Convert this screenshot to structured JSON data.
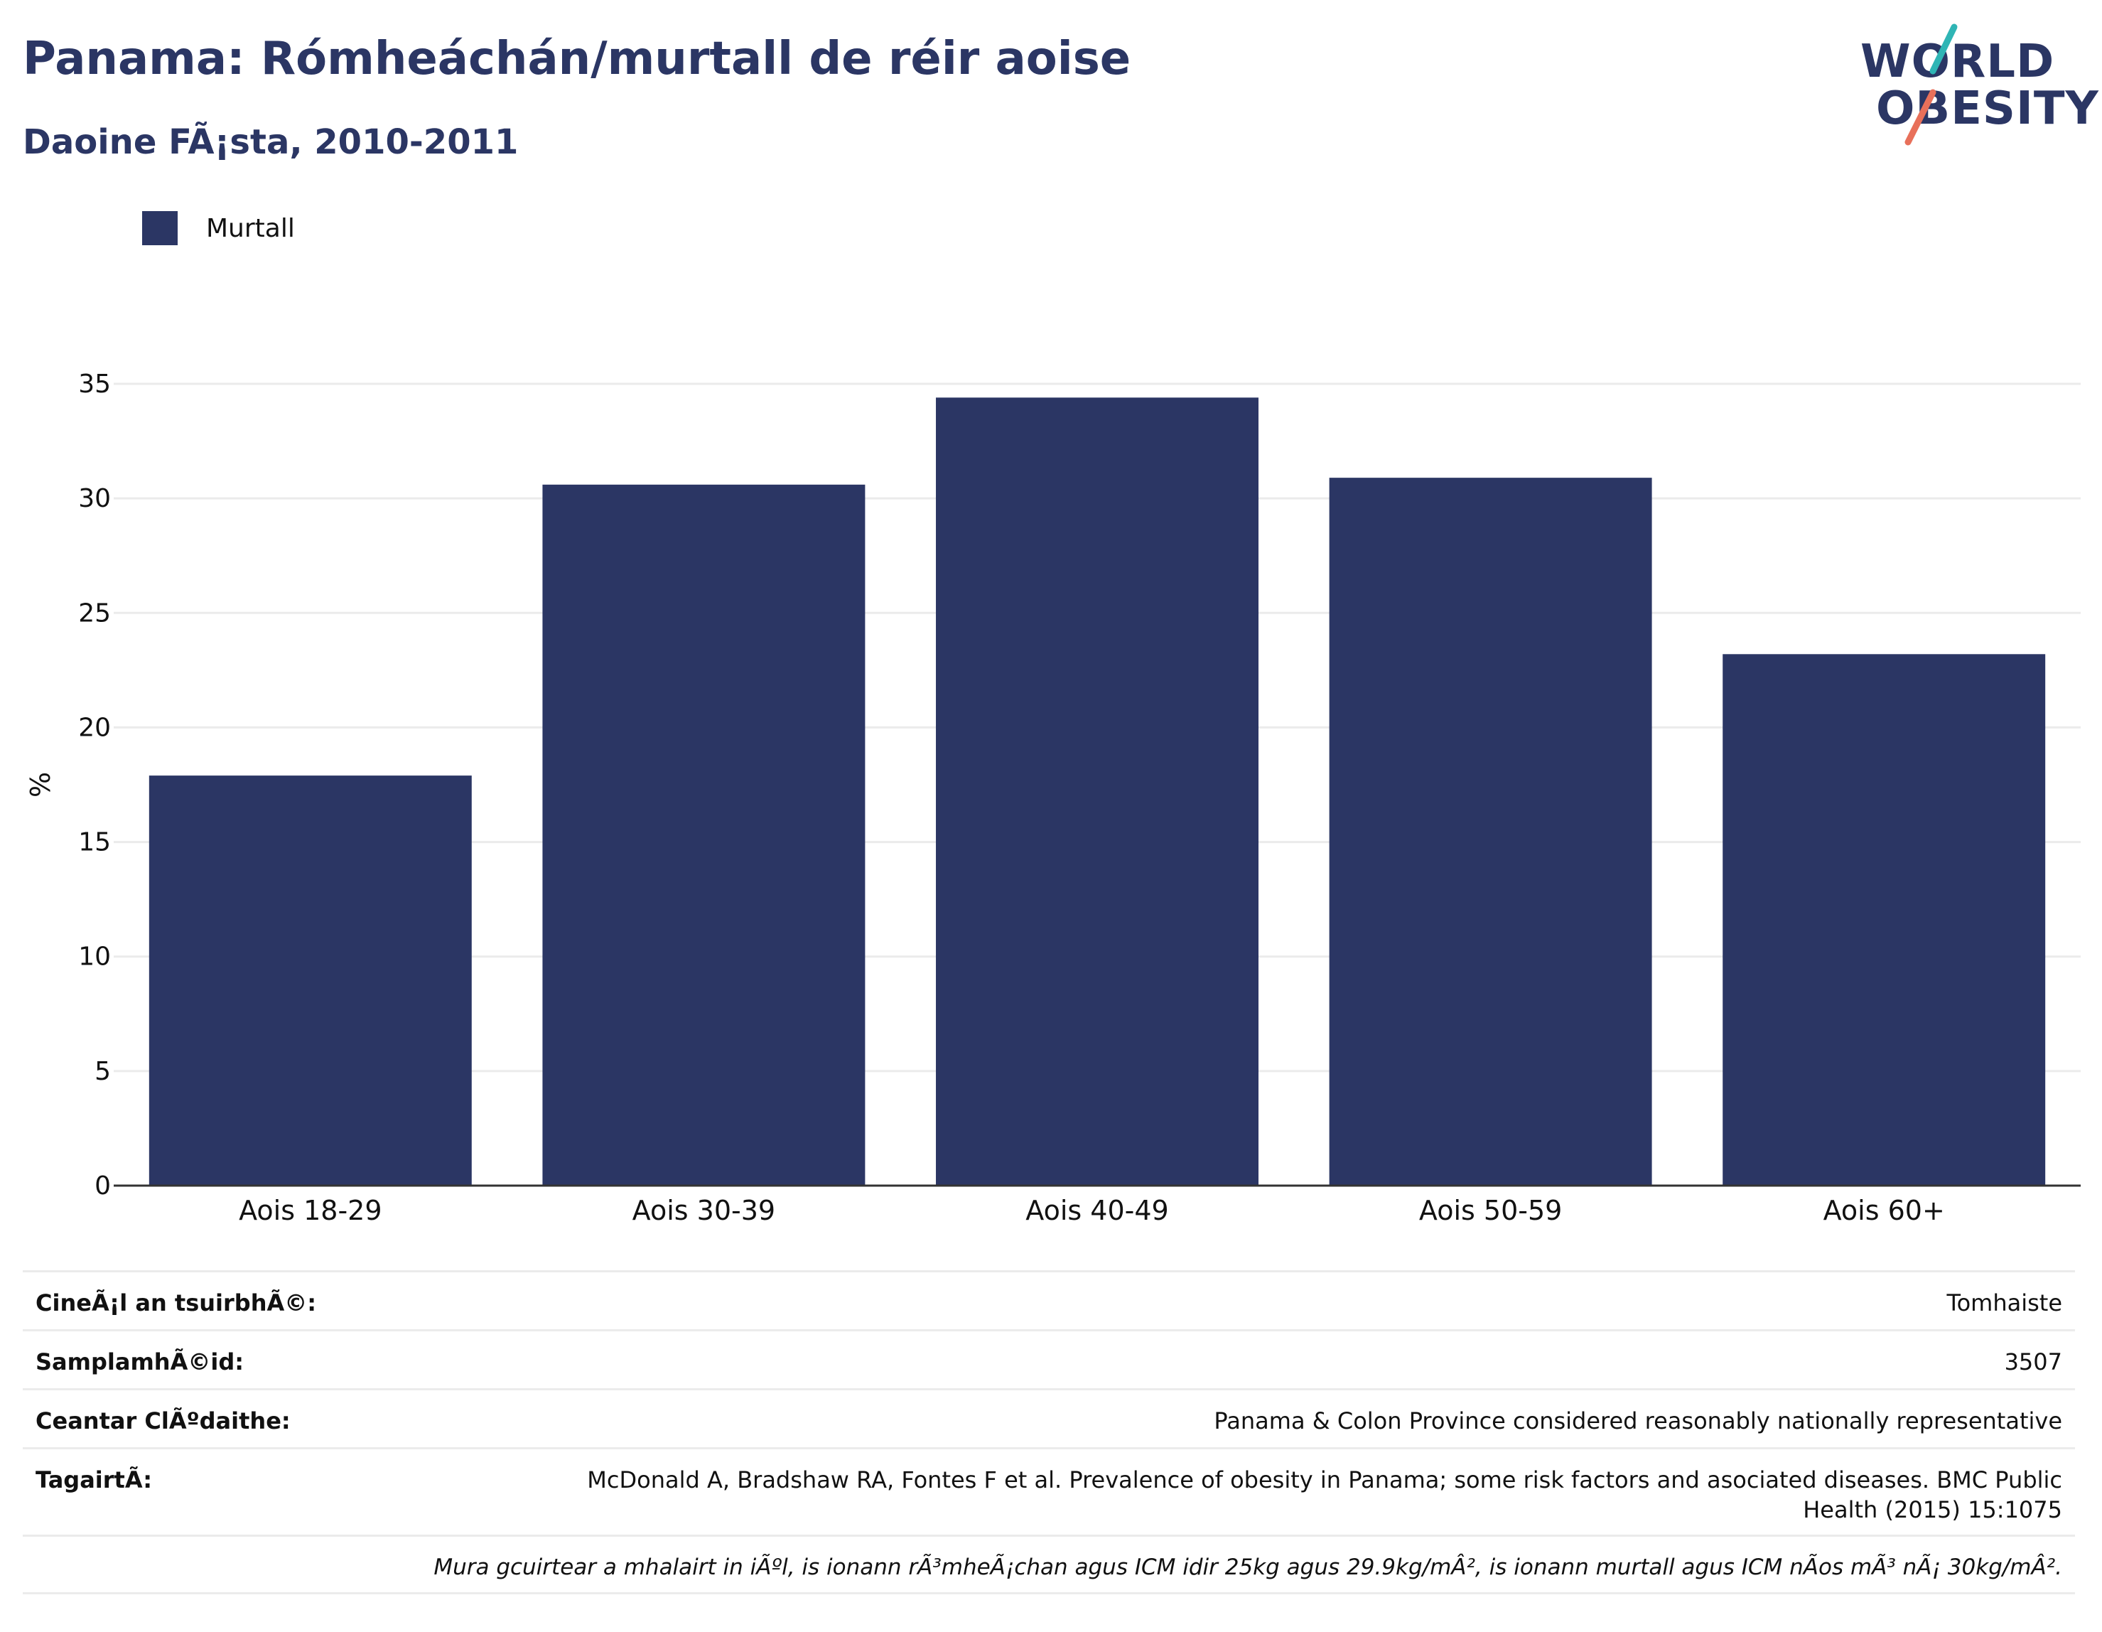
{
  "header": {
    "title": "Panama: Rómheáchán/murtall de réir aoise",
    "subtitle": "Daoine FÃ¡sta, 2010-2011"
  },
  "logo": {
    "line1": "WORLD",
    "line2": "OBESITY",
    "slash_colors": [
      "#2fb5b5",
      "#e8705a"
    ]
  },
  "legend": {
    "items": [
      {
        "label": "Murtall",
        "color": "#2b3664"
      }
    ]
  },
  "chart_data": {
    "type": "bar",
    "categories": [
      "Aois 18-29",
      "Aois 30-39",
      "Aois 40-49",
      "Aois 50-59",
      "Aois 60+"
    ],
    "series": [
      {
        "name": "Murtall",
        "values": [
          17.9,
          30.6,
          34.4,
          30.9,
          23.2
        ],
        "color": "#2b3664"
      }
    ],
    "ylabel": "%",
    "xlabel": "",
    "ylim": [
      0,
      35
    ],
    "yticks": [
      0,
      5,
      10,
      15,
      20,
      25,
      30,
      35
    ],
    "grid": true,
    "legend_position": "top-left"
  },
  "info": {
    "survey_type": {
      "label": "CineÃ¡l an tsuirbhÃ©:",
      "value": "Tomhaiste"
    },
    "sample_size": {
      "label": "SamplamhÃ©id:",
      "value": "3507"
    },
    "area": {
      "label": "Ceantar ClÃºdaithe:",
      "value": "Panama & Colon Province considered reasonably nationally representative"
    },
    "reference": {
      "label": "TagairtÃ:",
      "value": "McDonald A, Bradshaw RA, Fontes F et al. Prevalence of obesity in Panama; some risk factors and asociated diseases. BMC Public Health (2015) 15:1075"
    },
    "note": "Mura gcuirtear a mhalairt in iÃºl, is ionann rÃ³mheÃ¡chan agus ICM idir 25kg agus 29.9kg/mÂ², is ionann murtall agus ICM nÃos mÃ³ nÃ¡ 30kg/mÂ²."
  }
}
